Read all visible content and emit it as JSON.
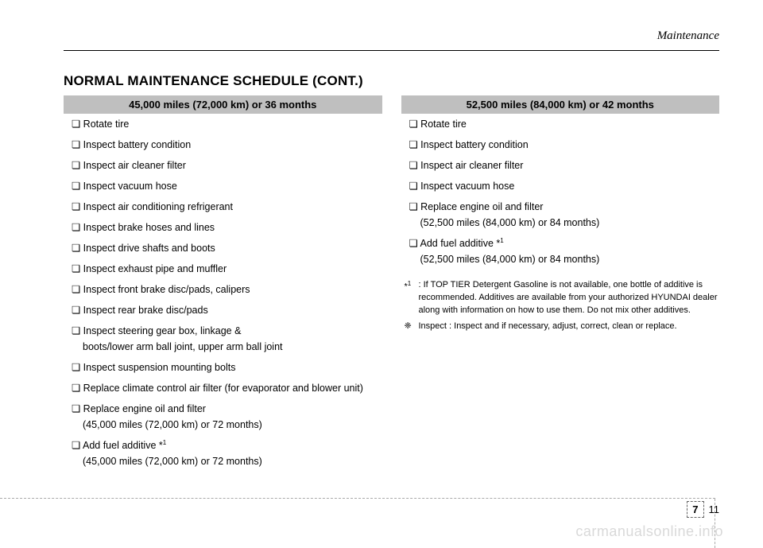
{
  "section": "Maintenance",
  "title": "NORMAL MAINTENANCE SCHEDULE (CONT.)",
  "col1": {
    "header": "45,000 miles (72,000 km) or 36 months",
    "items": [
      {
        "text": "Rotate tire"
      },
      {
        "text": "Inspect battery condition"
      },
      {
        "text": "Inspect air cleaner filter"
      },
      {
        "text": "Inspect vacuum hose"
      },
      {
        "text": "Inspect air conditioning refrigerant"
      },
      {
        "text": "Inspect brake hoses and lines"
      },
      {
        "text": "Inspect drive shafts and boots"
      },
      {
        "text": "Inspect exhaust pipe and muffler"
      },
      {
        "text": "Inspect front brake disc/pads, calipers"
      },
      {
        "text": "Inspect rear brake disc/pads"
      },
      {
        "text": "Inspect steering gear box, linkage &",
        "sub": "boots/lower arm ball joint, upper arm ball joint"
      },
      {
        "text": "Inspect suspension mounting bolts"
      },
      {
        "text": "Replace climate control air filter (for evaporator and blower unit)"
      },
      {
        "text": "Replace engine oil and filter",
        "sub": "(45,000 miles (72,000 km) or 72 months)"
      },
      {
        "text": "Add fuel additive *",
        "sup": "1",
        "sub": "(45,000 miles (72,000 km) or 72 months)"
      }
    ]
  },
  "col2": {
    "header": "52,500 miles (84,000 km) or 42 months",
    "items": [
      {
        "text": "Rotate tire"
      },
      {
        "text": "Inspect battery condition"
      },
      {
        "text": "Inspect air cleaner filter"
      },
      {
        "text": "Inspect vacuum hose"
      },
      {
        "text": "Replace engine oil and filter",
        "sub": "(52,500 miles (84,000 km) or 84 months)"
      },
      {
        "text": "Add fuel additive *",
        "sup": "1",
        "sub": "(52,500 miles (84,000 km) or 84 months)"
      }
    ]
  },
  "footnotes": [
    {
      "marker": "*1",
      "markerSup": true,
      "text": ": If TOP TIER Detergent Gasoline is not available, one bottle of additive is recommended. Additives are available from your authorized HYUNDAI dealer along with information on how to use them. Do not mix other additives."
    },
    {
      "marker": "❈",
      "text": "Inspect : Inspect and if necessary, adjust, correct, clean or replace."
    }
  ],
  "pageChapter": "7",
  "pageNumber": "11",
  "watermark": "carmanualsonline.info"
}
